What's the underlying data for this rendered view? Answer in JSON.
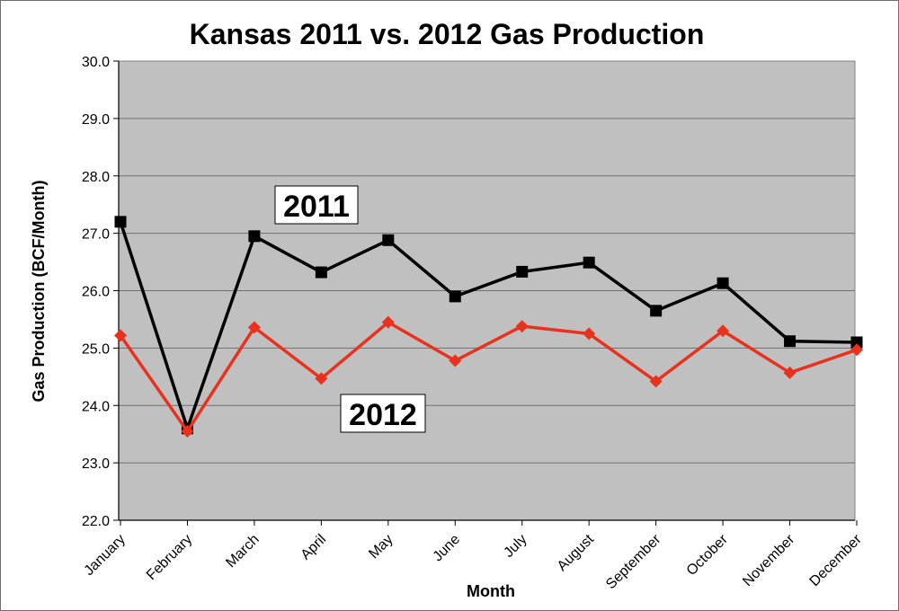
{
  "chart_data": {
    "type": "line",
    "title": "Kansas 2011 vs. 2012 Gas Production",
    "xlabel": "Month",
    "ylabel": "Gas Production (BCF/Month)",
    "ylim": [
      22.0,
      30.0
    ],
    "ytick_step": 1.0,
    "yticks": [
      "22.0",
      "23.0",
      "24.0",
      "25.0",
      "26.0",
      "27.0",
      "28.0",
      "29.0",
      "30.0"
    ],
    "grid": true,
    "legend": "none",
    "categories": [
      "January",
      "February",
      "March",
      "April",
      "May",
      "June",
      "July",
      "August",
      "September",
      "October",
      "November",
      "December"
    ],
    "series": [
      {
        "name": "2011",
        "color": "#000000",
        "marker": "square",
        "values": [
          27.2,
          23.6,
          26.95,
          26.32,
          26.88,
          25.9,
          26.33,
          26.49,
          25.65,
          26.13,
          25.12,
          25.1
        ]
      },
      {
        "name": "2012",
        "color": "#e8321e",
        "marker": "diamond",
        "values": [
          25.22,
          23.55,
          25.36,
          24.47,
          25.45,
          24.78,
          25.38,
          25.25,
          24.42,
          25.3,
          24.57,
          24.97
        ]
      }
    ],
    "plot_background": "#c0c0c0"
  }
}
